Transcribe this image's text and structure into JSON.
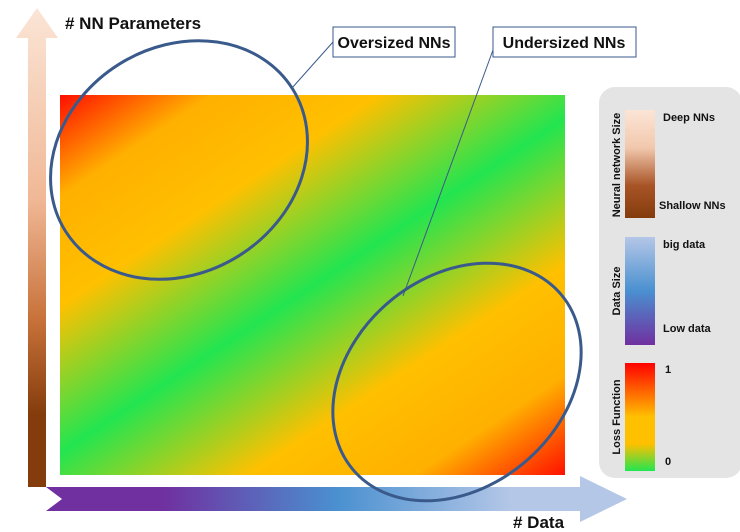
{
  "axes": {
    "y_label": "# NN Parameters",
    "x_label": "# Data"
  },
  "callouts": {
    "oversized": "Oversized NNs",
    "undersized": "Undersized NNs"
  },
  "legend": {
    "nn_size": {
      "title": "Neural network Size",
      "top": "Deep NNs",
      "bottom": "Shallow NNs"
    },
    "data_size": {
      "title": "Data Size",
      "top": "big data",
      "bottom": "Low data"
    },
    "loss": {
      "title": "Loss Function",
      "top": "1",
      "bottom": "0"
    }
  },
  "colors": {
    "ellipse_stroke": "#3a5a8c",
    "loss_high": "#ff0000",
    "loss_mid": "#ffc000",
    "loss_low": "#22e550",
    "nn_deep": "#fbe5d6",
    "nn_shallow": "#843c0c",
    "data_big": "#b4c7e7",
    "data_mid": "#4a90d0",
    "data_low": "#7030a0",
    "panel_bg": "#e4e4e4"
  }
}
